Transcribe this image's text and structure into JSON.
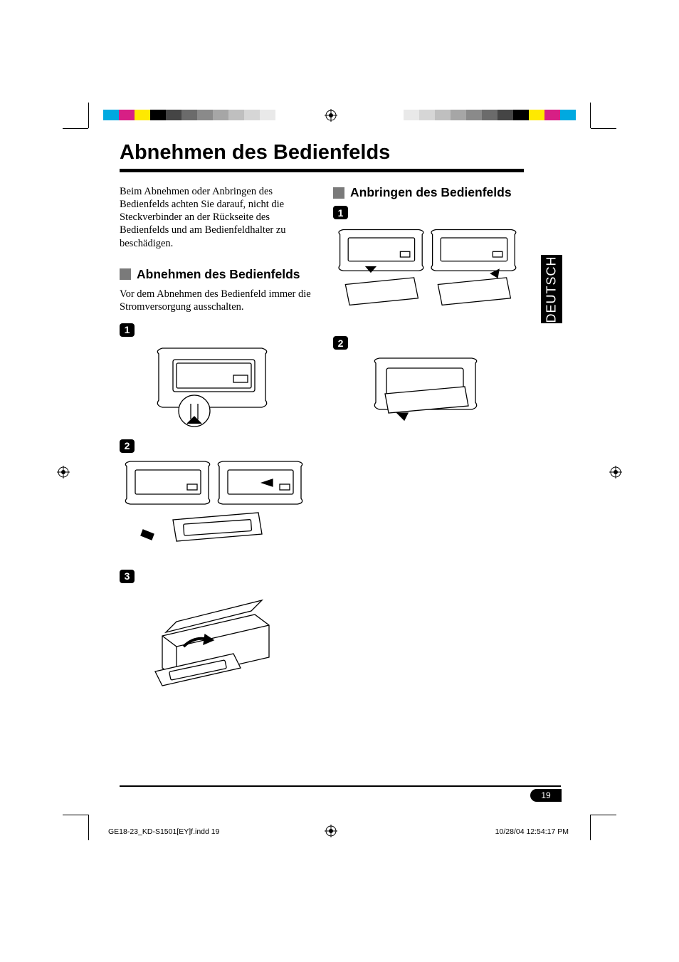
{
  "page": {
    "title": "Abnehmen des Bedienfelds",
    "intro": "Beim Abnehmen oder Anbringen des Bedienfelds achten Sie darauf, nicht die Steckverbinder an der Rückseite des Bedienfelds und am Bedienfeldhalter zu beschädigen.",
    "number": "19",
    "language_tab": "DEUTSCH"
  },
  "left_section": {
    "heading": "Abnehmen des Bedienfelds",
    "description": "Vor dem Abnehmen des Bedienfeld immer die Stromversorgung ausschalten.",
    "steps": [
      {
        "num": "1"
      },
      {
        "num": "2"
      },
      {
        "num": "3"
      }
    ]
  },
  "right_section": {
    "heading": "Anbringen des Bedienfelds",
    "steps": [
      {
        "num": "1"
      },
      {
        "num": "2"
      }
    ]
  },
  "footer": {
    "file_info": "GE18-23_KD-S1501[EY]f.indd   19",
    "timestamp": "10/28/04   12:54:17 PM"
  },
  "colors": {
    "section_bullet": "#7a7a7a",
    "colorbar": [
      "#00a9e0",
      "#d71f85",
      "#ffe900",
      "#000000",
      "#454545",
      "#6b6b6b",
      "#8a8a8a",
      "#a6a6a6",
      "#bfbfbf",
      "#d6d6d6",
      "#e9e9e9"
    ]
  }
}
